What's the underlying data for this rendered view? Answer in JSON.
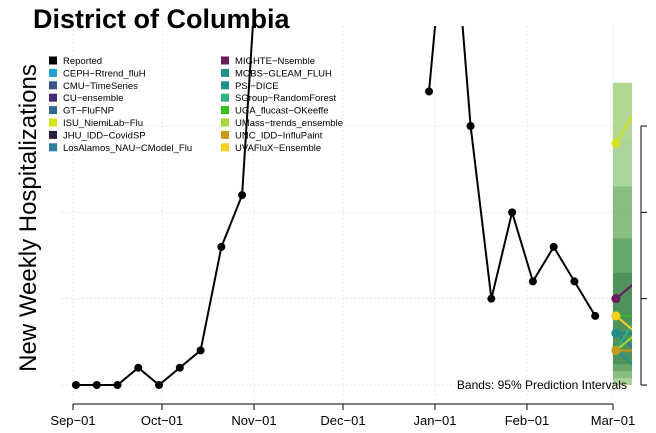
{
  "chart_data": {
    "type": "line",
    "title": "District of Columbia",
    "ylabel": "New Weekly Hospitalizations",
    "xlabel": "",
    "x_ticks": [
      "Sep−01",
      "Oct−01",
      "Nov−01",
      "Dec−01",
      "Jan−01",
      "Feb−01",
      "Mar−01"
    ],
    "y_ticks": [
      "0",
      "5",
      "10",
      "15"
    ],
    "ylim": [
      0,
      17.5
    ],
    "grid": true,
    "legend_position": "top-left",
    "band_note": "Bands: 95% Prediction Intervals",
    "reported": {
      "name": "Reported",
      "color": "#000000",
      "points": [
        {
          "date": "2023-09-02",
          "value": 0
        },
        {
          "date": "2023-09-09",
          "value": 0
        },
        {
          "date": "2023-09-16",
          "value": 0
        },
        {
          "date": "2023-09-23",
          "value": 1
        },
        {
          "date": "2023-09-30",
          "value": 0
        },
        {
          "date": "2023-10-07",
          "value": 1
        },
        {
          "date": "2023-10-14",
          "value": 2
        },
        {
          "date": "2023-10-21",
          "value": 8
        },
        {
          "date": "2023-10-28",
          "value": 11
        },
        {
          "date": "2023-11-04",
          "value": 30
        },
        {
          "date": "2023-12-30",
          "value": 17
        },
        {
          "date": "2024-01-06",
          "value": 30
        },
        {
          "date": "2024-01-13",
          "value": 15
        },
        {
          "date": "2024-01-20",
          "value": 5
        },
        {
          "date": "2024-01-27",
          "value": 10
        },
        {
          "date": "2024-02-03",
          "value": 6
        },
        {
          "date": "2024-02-10",
          "value": 8
        },
        {
          "date": "2024-02-17",
          "value": 6
        },
        {
          "date": "2024-02-24",
          "value": 4
        }
      ]
    },
    "forecast_dates": [
      "2024-03-02",
      "2024-03-09"
    ],
    "prediction_band": {
      "lower": 0,
      "upper": 17.5,
      "color": "#7fbf6a"
    },
    "series": [
      {
        "name": "CEPH−Rtrend_fluH",
        "color": "#1f9fd2",
        "values": [
          3,
          3
        ]
      },
      {
        "name": "CMU−TimeSeries",
        "color": "#3b528b",
        "values": [
          4,
          4
        ]
      },
      {
        "name": "CU−ensemble",
        "color": "#482878",
        "values": [
          3,
          3
        ]
      },
      {
        "name": "GT−FluFNP",
        "color": "#31688e",
        "values": [
          4,
          3
        ]
      },
      {
        "name": "ISU_NiemiLab−Flu",
        "color": "#d4e21a",
        "values": [
          14,
          16
        ]
      },
      {
        "name": "JHU_IDD−CovidSP",
        "color": "#2b1d3e",
        "values": [
          5,
          6
        ]
      },
      {
        "name": "LosAlamos_NAU−CModel_Flu",
        "color": "#2d7e9c",
        "values": [
          3,
          2
        ]
      },
      {
        "name": "MIGHTE−Nsemble",
        "color": "#6b1f5a",
        "values": [
          5,
          6
        ]
      },
      {
        "name": "MOBS−GLEAM_FLUH",
        "color": "#21918c",
        "values": [
          2,
          1
        ]
      },
      {
        "name": "PSI−DICE",
        "color": "#1f8f8a",
        "values": [
          3,
          3
        ]
      },
      {
        "name": "SGroup−RandomForest",
        "color": "#2fb47c",
        "values": [
          2,
          4
        ]
      },
      {
        "name": "UGA_flucast−OKeeffe",
        "color": "#35c21a",
        "values": [
          4,
          4
        ]
      },
      {
        "name": "UMass−trends_ensemble",
        "color": "#a6d637",
        "values": [
          2,
          3
        ]
      },
      {
        "name": "UNC_IDD−InfluPaint",
        "color": "#c79a1a",
        "values": [
          2,
          2
        ]
      },
      {
        "name": "UVAFluX−Ensemble",
        "color": "#f5d21c",
        "values": [
          4,
          3
        ]
      }
    ]
  }
}
